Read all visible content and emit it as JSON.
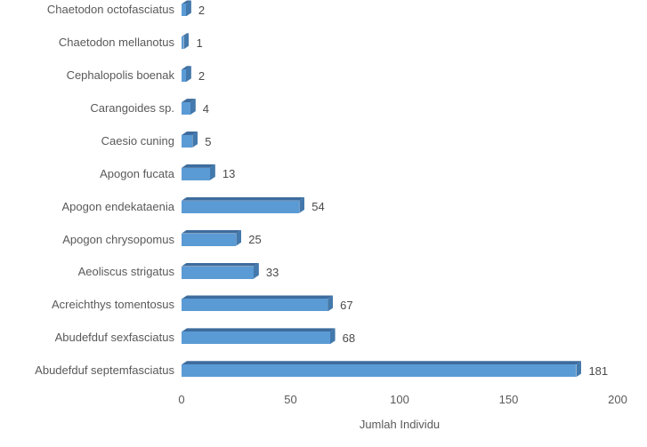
{
  "chart_data": {
    "type": "bar",
    "orientation": "horizontal",
    "title": "",
    "xlabel": "Jumlah Individu",
    "ylabel": "",
    "categories": [
      "Chaetodon octofasciatus",
      "Chaetodon mellanotus",
      "Cephalopolis boenak",
      "Carangoides sp.",
      "Caesio cuning",
      "Apogon fucata",
      "Apogon endekataenia",
      "Apogon chrysopomus",
      "Aeoliscus strigatus",
      "Acreichthys tomentosus",
      "Abudefduf sexfasciatus",
      "Abudefduf septemfasciatus"
    ],
    "values": [
      2,
      1,
      2,
      4,
      5,
      13,
      54,
      25,
      33,
      67,
      68,
      181
    ],
    "xlim": [
      0,
      200
    ],
    "xticks": [
      0,
      50,
      100,
      150,
      200
    ],
    "grid": false,
    "legend": false,
    "data_labels": true,
    "style": "3d-horizontal-bar",
    "colors": {
      "bar_face": "#5B9BD5",
      "bar_top": "#3D6C9E",
      "bar_side": "#4379AC",
      "axis_text": "#595959",
      "value_text": "#4a4a4a",
      "background": "#ffffff"
    }
  }
}
